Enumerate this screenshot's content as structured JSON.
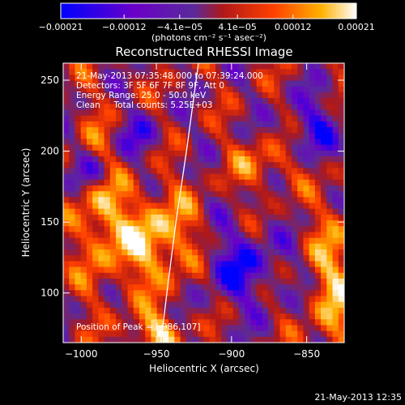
{
  "chart_data": {
    "type": "heatmap",
    "title": "Reconstructed RHESSI Image",
    "xlabel": "Heliocentric X (arcsec)",
    "ylabel": "Heliocentric Y (arcsec)",
    "xlim": [
      -1012,
      -825
    ],
    "ylim": [
      65,
      262
    ],
    "x_ticks": [
      -1000,
      -950,
      -900,
      -850
    ],
    "x_tick_labels": [
      "−1000",
      "−950",
      "−900",
      "−850"
    ],
    "y_ticks": [
      100,
      150,
      200,
      250
    ],
    "y_tick_labels": [
      "100",
      "150",
      "200",
      "250"
    ],
    "colorbar": {
      "range": [
        -0.00021,
        0.00021
      ],
      "ticks": [
        -0.00021,
        -0.00012,
        -4.1e-05,
        4.1e-05,
        0.00012,
        0.00021
      ],
      "tick_labels": [
        "−0.00021",
        "−0.00012",
        "−4.1e−05",
        "4.1e−05",
        "0.00012",
        "0.00021"
      ],
      "unit_label": "(photons cm⁻² s⁻¹ asec⁻²)",
      "colors": [
        "#0000ff",
        "#6a00c8",
        "#5a2a9a",
        "#b01818",
        "#ff4000",
        "#ffb000",
        "#ffffff"
      ]
    },
    "annotations": [
      "21-May-2013 07:35:48.000 to 07:39:24.000",
      "Detectors: 3F 5F 6F 7F 8F 9F, Att 0",
      "Energy Range: 25.0 - 50.0 keV",
      "Clean     Total counts: 5.25E+03"
    ],
    "peak_label": "Position of Peak = [-986,107]",
    "limb": [
      [
        -947,
        65
      ],
      [
        -943,
        100
      ],
      [
        -937,
        150
      ],
      [
        -930,
        200
      ],
      [
        -922,
        262
      ]
    ],
    "timestamp": "21-May-2013 12:35"
  }
}
